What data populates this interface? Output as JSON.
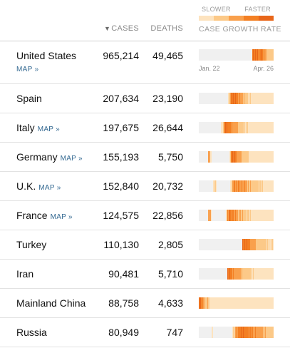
{
  "header": {
    "cases_label": "CASES",
    "sort_arrow": "▼",
    "deaths_label": "DEATHS",
    "legend_slower": "SLOWER",
    "legend_faster": "FASTER",
    "legend_title": "CASE GROWTH RATE"
  },
  "map_label": "MAP »",
  "dates": {
    "start": "Jan. 22",
    "end": "Apr. 26"
  },
  "colors": {
    "level0": "#f0f0f0",
    "level1": "#fde3bf",
    "level2": "#fcc988",
    "level3": "#f9a04c",
    "level4": "#f37f23",
    "level5": "#e8661a"
  },
  "legend_levels": [
    1,
    2,
    3,
    4,
    5
  ],
  "rows": [
    {
      "country": "United States",
      "cases": "965,214",
      "deaths": "49,465",
      "map": true,
      "map_below": true,
      "strip": [
        0,
        0,
        0,
        0,
        0,
        0,
        0,
        0,
        0,
        0,
        0,
        0,
        0,
        0,
        0,
        0,
        0,
        0,
        0,
        0,
        0,
        0,
        0,
        0,
        0,
        0,
        0,
        0,
        0,
        0,
        0,
        0,
        0,
        0,
        0,
        0,
        0,
        0,
        0,
        0,
        0,
        0,
        0,
        0,
        0,
        0,
        0,
        0,
        0,
        0,
        0,
        0,
        0,
        0,
        0,
        0,
        0,
        0,
        0,
        0,
        0,
        0,
        0,
        0,
        0,
        0,
        0,
        0,
        0,
        0,
        0,
        0,
        4,
        5,
        4,
        5,
        4,
        4,
        5,
        4,
        3,
        4,
        4,
        5,
        4,
        4,
        3,
        4,
        3,
        3,
        3,
        2,
        2,
        2,
        2,
        2,
        2,
        2,
        2,
        2
      ]
    },
    {
      "country": "Spain",
      "cases": "207,634",
      "deaths": "23,190",
      "map": false,
      "map_below": false,
      "strip": [
        0,
        0,
        0,
        0,
        0,
        0,
        0,
        0,
        0,
        0,
        0,
        0,
        0,
        0,
        0,
        0,
        0,
        0,
        0,
        0,
        0,
        0,
        0,
        0,
        0,
        0,
        0,
        0,
        0,
        0,
        0,
        0,
        0,
        0,
        0,
        0,
        0,
        0,
        0,
        1,
        2,
        2,
        3,
        4,
        5,
        4,
        5,
        4,
        4,
        5,
        4,
        4,
        4,
        3,
        4,
        3,
        3,
        3,
        3,
        2,
        3,
        2,
        2,
        2,
        2,
        2,
        1,
        2,
        1,
        2,
        1,
        1,
        1,
        1,
        1,
        1,
        1,
        1,
        1,
        1,
        1,
        1,
        1,
        1,
        1,
        1,
        1,
        1,
        1,
        1,
        1,
        1,
        1,
        1,
        1,
        1,
        1,
        1,
        1,
        1
      ]
    },
    {
      "country": "Italy",
      "cases": "197,675",
      "deaths": "26,644",
      "map": true,
      "map_below": false,
      "strip": [
        0,
        0,
        0,
        0,
        0,
        0,
        0,
        0,
        0,
        0,
        0,
        0,
        0,
        0,
        0,
        0,
        0,
        0,
        0,
        0,
        0,
        0,
        0,
        0,
        0,
        0,
        0,
        0,
        0,
        0,
        1,
        1,
        2,
        3,
        4,
        5,
        4,
        5,
        4,
        4,
        4,
        4,
        4,
        3,
        4,
        3,
        3,
        3,
        3,
        3,
        3,
        3,
        3,
        2,
        2,
        2,
        2,
        2,
        2,
        2,
        1,
        2,
        1,
        2,
        1,
        2,
        1,
        1,
        1,
        1,
        1,
        1,
        1,
        1,
        1,
        1,
        1,
        1,
        1,
        1,
        1,
        1,
        1,
        1,
        1,
        1,
        1,
        1,
        1,
        1,
        1,
        1,
        1,
        1,
        1,
        1,
        1,
        1,
        1,
        1
      ]
    },
    {
      "country": "Germany",
      "cases": "155,193",
      "deaths": "5,750",
      "map": true,
      "map_below": false,
      "strip": [
        0,
        0,
        0,
        0,
        0,
        0,
        0,
        0,
        0,
        0,
        0,
        0,
        3,
        4,
        2,
        1,
        1,
        0,
        0,
        0,
        0,
        0,
        0,
        0,
        0,
        0,
        0,
        0,
        0,
        0,
        0,
        0,
        0,
        0,
        0,
        0,
        0,
        0,
        0,
        0,
        0,
        1,
        2,
        4,
        4,
        5,
        4,
        4,
        5,
        4,
        4,
        3,
        3,
        3,
        3,
        3,
        3,
        2,
        2,
        2,
        2,
        2,
        2,
        2,
        2,
        2,
        2,
        1,
        1,
        1,
        1,
        1,
        1,
        1,
        1,
        1,
        1,
        1,
        1,
        1,
        1,
        1,
        1,
        1,
        1,
        1,
        1,
        1,
        1,
        1,
        1,
        1,
        1,
        1,
        1,
        1,
        1,
        1,
        1,
        1
      ]
    },
    {
      "country": "U.K.",
      "cases": "152,840",
      "deaths": "20,732",
      "map": true,
      "map_below": false,
      "strip": [
        0,
        0,
        0,
        0,
        0,
        0,
        0,
        0,
        0,
        0,
        0,
        0,
        0,
        0,
        0,
        0,
        0,
        0,
        0,
        1,
        2,
        1,
        2,
        1,
        0,
        0,
        0,
        0,
        0,
        0,
        0,
        0,
        0,
        0,
        0,
        0,
        0,
        0,
        0,
        0,
        0,
        0,
        1,
        1,
        2,
        3,
        3,
        4,
        4,
        3,
        4,
        3,
        3,
        4,
        3,
        3,
        3,
        4,
        3,
        3,
        3,
        4,
        3,
        3,
        3,
        2,
        3,
        2,
        2,
        3,
        2,
        2,
        2,
        2,
        2,
        2,
        2,
        2,
        2,
        2,
        1,
        2,
        2,
        1,
        2,
        2,
        1,
        1,
        1,
        1,
        1,
        1,
        1,
        1,
        1,
        1,
        1,
        1,
        1,
        1
      ]
    },
    {
      "country": "France",
      "cases": "124,575",
      "deaths": "22,856",
      "map": true,
      "map_below": false,
      "strip": [
        0,
        0,
        0,
        0,
        0,
        0,
        0,
        0,
        0,
        0,
        0,
        0,
        3,
        2,
        4,
        3,
        1,
        0,
        0,
        0,
        0,
        0,
        0,
        0,
        0,
        0,
        0,
        0,
        0,
        0,
        0,
        0,
        0,
        0,
        0,
        0,
        1,
        2,
        4,
        3,
        4,
        5,
        4,
        4,
        3,
        4,
        4,
        3,
        3,
        4,
        3,
        3,
        3,
        2,
        3,
        3,
        2,
        2,
        3,
        2,
        2,
        2,
        2,
        2,
        1,
        2,
        2,
        2,
        1,
        2,
        1,
        1,
        1,
        1,
        1,
        1,
        1,
        1,
        1,
        1,
        1,
        1,
        1,
        1,
        1,
        1,
        1,
        1,
        1,
        1,
        1,
        1,
        1,
        1,
        1,
        1,
        1,
        1,
        1,
        1
      ]
    },
    {
      "country": "Turkey",
      "cases": "110,130",
      "deaths": "2,805",
      "map": false,
      "map_below": false,
      "strip": [
        0,
        0,
        0,
        0,
        0,
        0,
        0,
        0,
        0,
        0,
        0,
        0,
        0,
        0,
        0,
        0,
        0,
        0,
        0,
        0,
        0,
        0,
        0,
        0,
        0,
        0,
        0,
        0,
        0,
        0,
        0,
        0,
        0,
        0,
        0,
        0,
        0,
        0,
        0,
        0,
        0,
        0,
        0,
        0,
        0,
        0,
        0,
        0,
        0,
        0,
        0,
        0,
        0,
        0,
        0,
        0,
        0,
        0,
        5,
        4,
        4,
        5,
        4,
        4,
        5,
        4,
        4,
        4,
        4,
        3,
        3,
        3,
        3,
        3,
        3,
        3,
        2,
        2,
        2,
        2,
        2,
        2,
        2,
        2,
        2,
        2,
        2,
        2,
        2,
        2,
        2,
        1,
        2,
        1,
        2,
        1,
        2,
        1,
        2,
        1
      ]
    },
    {
      "country": "Iran",
      "cases": "90,481",
      "deaths": "5,710",
      "map": false,
      "map_below": false,
      "strip": [
        0,
        0,
        0,
        0,
        0,
        0,
        0,
        0,
        0,
        0,
        0,
        0,
        0,
        0,
        0,
        0,
        0,
        0,
        0,
        0,
        0,
        0,
        0,
        0,
        0,
        0,
        0,
        0,
        0,
        0,
        0,
        0,
        0,
        0,
        0,
        0,
        0,
        0,
        5,
        4,
        4,
        5,
        4,
        4,
        4,
        3,
        4,
        3,
        3,
        3,
        3,
        3,
        3,
        3,
        3,
        3,
        2,
        3,
        2,
        2,
        2,
        2,
        2,
        2,
        2,
        2,
        2,
        2,
        2,
        2,
        1,
        2,
        1,
        2,
        1,
        1,
        1,
        1,
        1,
        1,
        1,
        1,
        1,
        1,
        1,
        1,
        1,
        1,
        1,
        1,
        1,
        1,
        1,
        1,
        1,
        1,
        1,
        1,
        1,
        1
      ]
    },
    {
      "country": "Mainland China",
      "cases": "88,758",
      "deaths": "4,633",
      "map": false,
      "map_below": false,
      "strip": [
        5,
        4,
        5,
        4,
        3,
        4,
        3,
        3,
        2,
        2,
        2,
        3,
        2,
        2,
        1,
        1,
        1,
        1,
        1,
        1,
        1,
        1,
        1,
        1,
        1,
        1,
        1,
        1,
        1,
        1,
        1,
        1,
        1,
        1,
        1,
        1,
        1,
        1,
        1,
        1,
        1,
        1,
        1,
        1,
        1,
        1,
        1,
        1,
        1,
        1,
        1,
        1,
        1,
        1,
        1,
        1,
        1,
        1,
        1,
        1,
        1,
        1,
        1,
        1,
        1,
        1,
        1,
        1,
        1,
        1,
        1,
        1,
        1,
        1,
        1,
        1,
        1,
        1,
        1,
        1,
        1,
        1,
        1,
        1,
        1,
        1,
        1,
        1,
        1,
        1,
        1,
        1,
        1,
        1,
        1,
        1,
        1,
        1,
        1,
        1
      ]
    },
    {
      "country": "Russia",
      "cases": "80,949",
      "deaths": "747",
      "map": false,
      "map_below": false,
      "strip": [
        0,
        0,
        0,
        0,
        0,
        0,
        0,
        0,
        0,
        0,
        0,
        0,
        0,
        0,
        0,
        0,
        0,
        1,
        1,
        0,
        0,
        0,
        0,
        0,
        0,
        0,
        0,
        0,
        0,
        0,
        0,
        0,
        0,
        0,
        0,
        0,
        0,
        0,
        0,
        0,
        0,
        0,
        0,
        0,
        0,
        1,
        2,
        1,
        2,
        3,
        3,
        4,
        3,
        4,
        4,
        4,
        5,
        4,
        4,
        5,
        4,
        4,
        4,
        4,
        4,
        4,
        4,
        3,
        4,
        4,
        4,
        3,
        4,
        3,
        3,
        4,
        3,
        3,
        3,
        3,
        3,
        3,
        3,
        3,
        3,
        3,
        2,
        3,
        2,
        3,
        2,
        2,
        2,
        2,
        2,
        2,
        2,
        2,
        2,
        2
      ]
    }
  ]
}
